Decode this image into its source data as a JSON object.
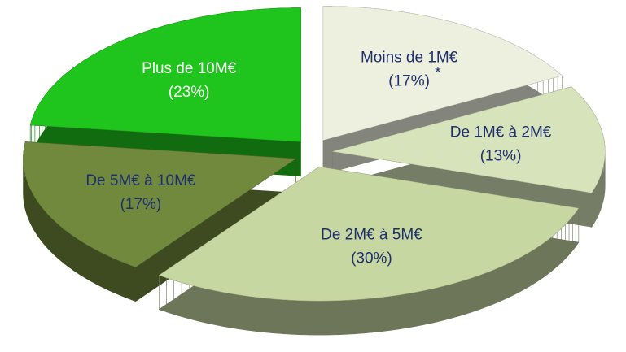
{
  "chart_data": {
    "type": "pie",
    "categories": [
      "Moins de 1M€",
      "De 1M€ à 2M€",
      "De 2M€ à 5M€",
      "De 5M€ à 10M€",
      "Plus de 10M€"
    ],
    "values": [
      17,
      13,
      30,
      17,
      23
    ],
    "value_labels": [
      "(17%)",
      "(13%)",
      "(30%)",
      "(17%)",
      "(23%)"
    ],
    "colors": [
      "#eef0df",
      "#d7e3bb",
      "#c7d7a2",
      "#71893c",
      "#1fc41c"
    ],
    "label_colors": [
      "#1f2f6e",
      "#1f2f6e",
      "#1f2f6e",
      "#1f2f6e",
      "#ffffff"
    ],
    "annotation": "*"
  }
}
